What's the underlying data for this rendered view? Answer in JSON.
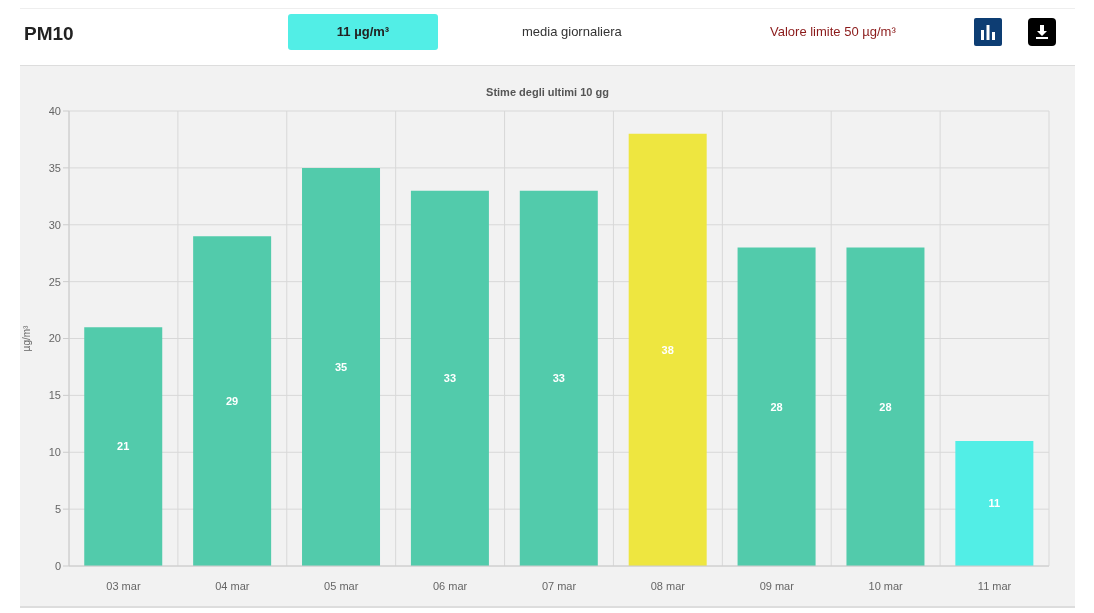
{
  "chart_data": {
    "type": "bar",
    "title": "Stime degli ultimi 10 gg",
    "ylabel": "µg/m³",
    "annotations": [
      "PM10",
      "11 µg/m³",
      "media giornaliera",
      "Valore limite 50 µg/m³"
    ],
    "categories": [
      "03 mar",
      "04 mar",
      "05 mar",
      "06 mar",
      "07 mar",
      "08 mar",
      "09 mar",
      "10 mar",
      "11 mar"
    ],
    "values": [
      21,
      29,
      35,
      33,
      33,
      38,
      28,
      28,
      11
    ],
    "colors": [
      "#52cbab",
      "#52cbab",
      "#52cbab",
      "#52cbab",
      "#52cbab",
      "#eee640",
      "#52cbab",
      "#52cbab",
      "#52eee6"
    ],
    "ylim": [
      0,
      40
    ],
    "yticks": [
      0,
      5,
      10,
      15,
      20,
      25,
      30,
      35,
      40
    ],
    "grid": true,
    "data_labels": true
  }
}
